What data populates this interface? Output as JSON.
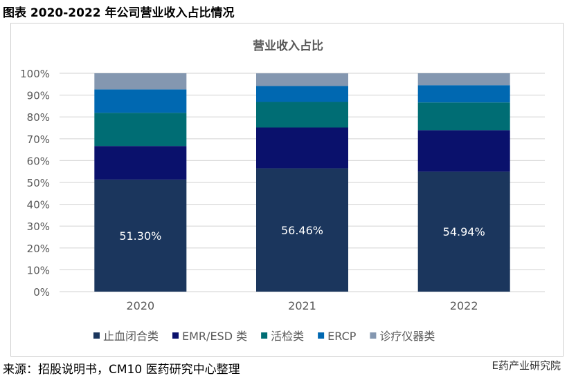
{
  "figure_title": "图表 2020-2022 年公司营业收入占比情况",
  "source": "来源：招股说明书，CM10 医药研究中心整理",
  "watermark": "E药产业研究院",
  "chart_data": {
    "type": "bar",
    "stacked": true,
    "title": "营业收入占比",
    "categories": [
      "2020",
      "2021",
      "2022"
    ],
    "ylim": [
      0,
      100
    ],
    "yticks": [
      "0%",
      "10%",
      "20%",
      "30%",
      "40%",
      "50%",
      "60%",
      "70%",
      "80%",
      "90%",
      "100%"
    ],
    "grid": true,
    "legend": "bottom",
    "series": [
      {
        "name": "止血闭合类",
        "color": "#1b365d",
        "values": [
          51.3,
          56.46,
          54.94
        ],
        "labels": [
          "51.30%",
          "56.46%",
          "54.94%"
        ]
      },
      {
        "name": "EMR/ESD 类",
        "color": "#0a116c",
        "values": [
          15.4,
          18.7,
          19.0
        ]
      },
      {
        "name": "活检类",
        "color": "#006d74",
        "values": [
          15.2,
          11.7,
          12.7
        ]
      },
      {
        "name": "ERCP",
        "color": "#0068b1",
        "values": [
          10.7,
          7.3,
          7.9
        ]
      },
      {
        "name": "诊疗仪器类",
        "color": "#8497b0",
        "values": [
          7.4,
          5.8,
          5.46
        ]
      }
    ]
  }
}
